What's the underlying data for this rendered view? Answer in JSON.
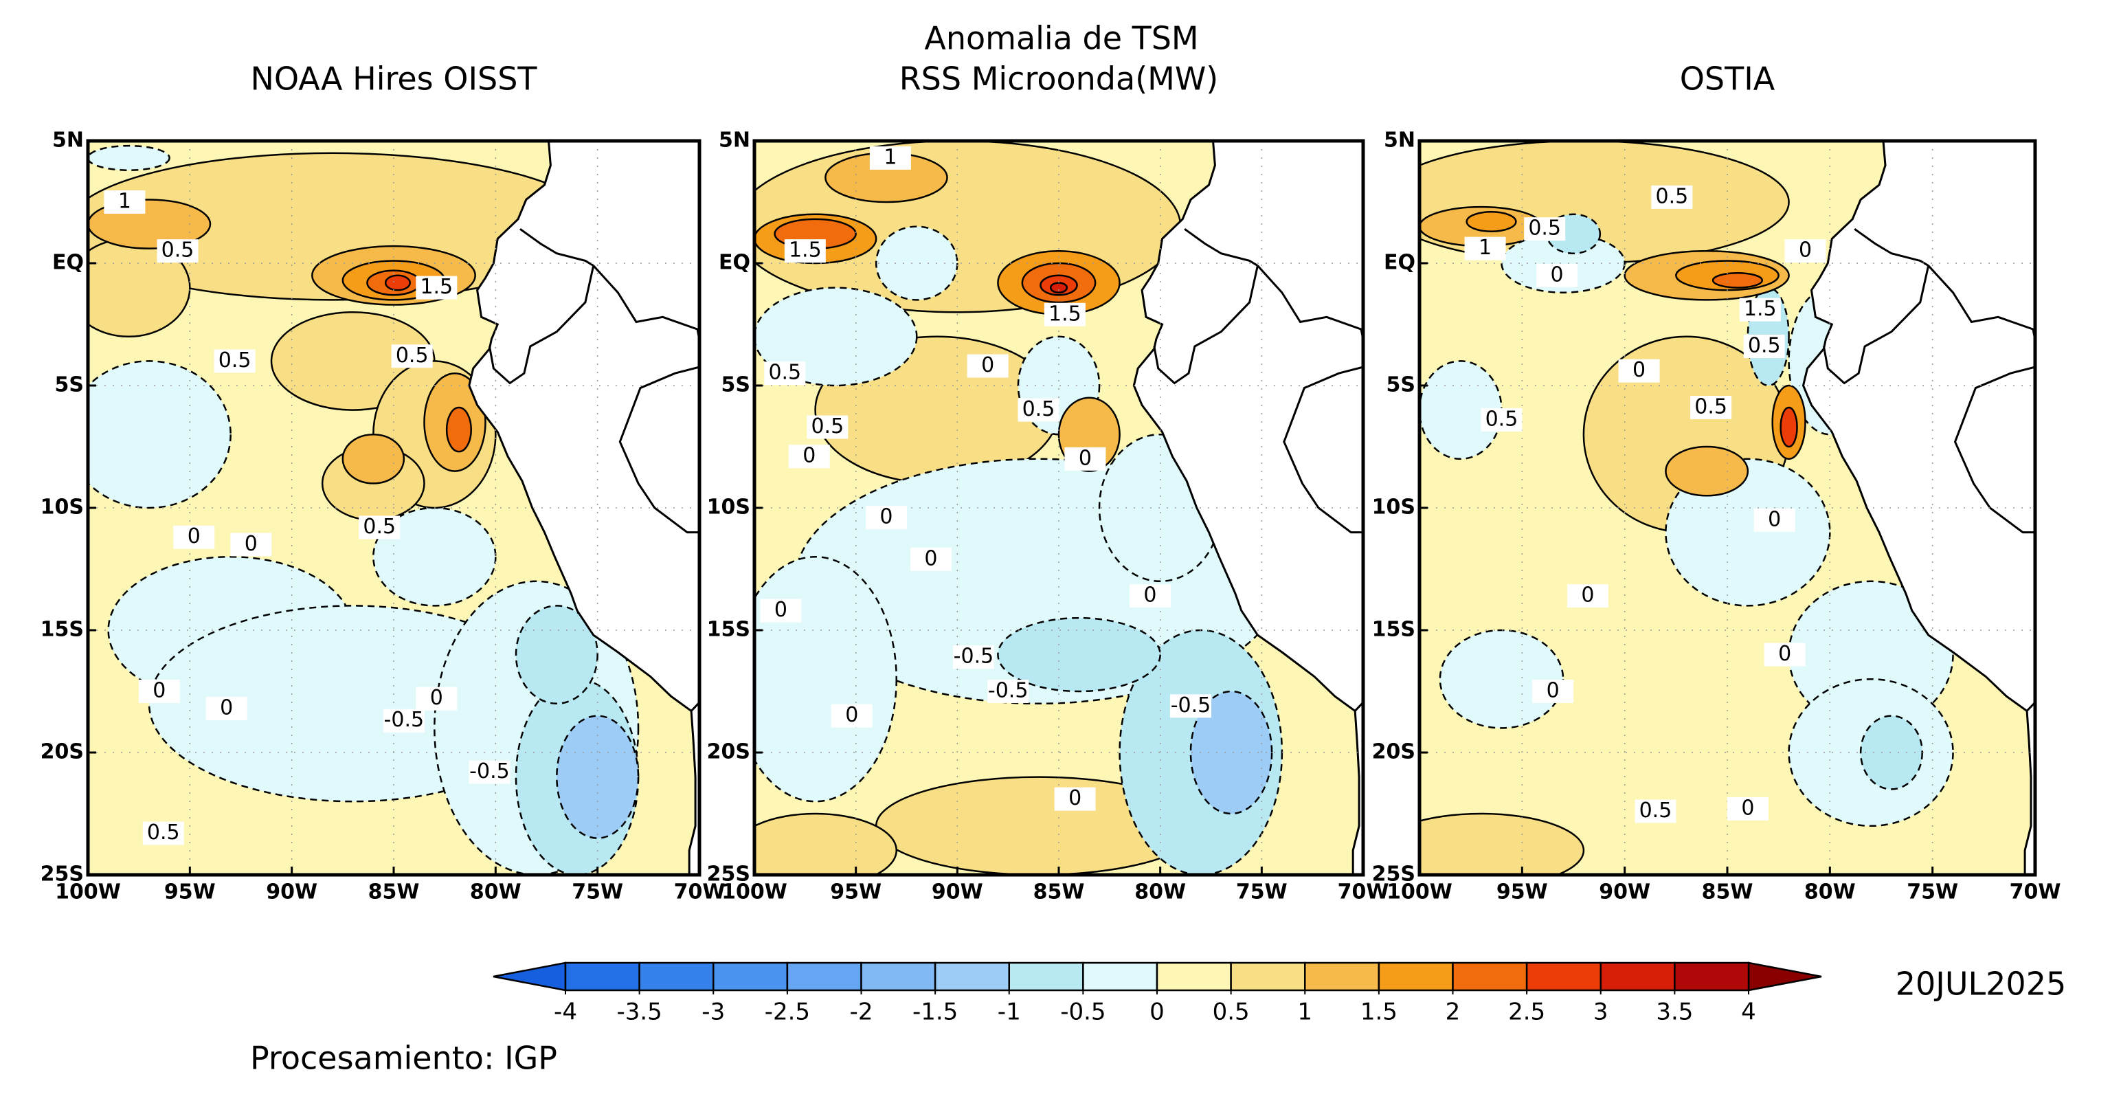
{
  "title": "Anomalia de TSM",
  "panels": [
    {
      "title": "NOAA Hires OISST",
      "contour_labels": [
        1,
        0.5,
        1.5,
        0.5,
        0.5,
        0.5,
        0,
        0,
        0,
        0,
        0,
        -0.5,
        -0.5,
        0.5
      ]
    },
    {
      "title": "RSS Microonda(MW)",
      "contour_labels": [
        1,
        1.5,
        1.5,
        0.5,
        0,
        0.5,
        0.5,
        0,
        0,
        0,
        0,
        0,
        0,
        -0.5,
        -0.5,
        -0.5,
        0,
        0
      ]
    },
    {
      "title": "OSTIA",
      "contour_labels": [
        0.5,
        0.5,
        1,
        0,
        0,
        1.5,
        0.5,
        0,
        0.5,
        0.5,
        0,
        0,
        0,
        0,
        0.5,
        0
      ]
    }
  ],
  "lat_ticks": [
    {
      "value": 5,
      "label": "5N"
    },
    {
      "value": 0,
      "label": "EQ"
    },
    {
      "value": -5,
      "label": "5S"
    },
    {
      "value": -10,
      "label": "10S"
    },
    {
      "value": -15,
      "label": "15S"
    },
    {
      "value": -20,
      "label": "20S"
    },
    {
      "value": -25,
      "label": "25S"
    }
  ],
  "lon_ticks": [
    {
      "value": -100,
      "label": "100W"
    },
    {
      "value": -95,
      "label": "95W"
    },
    {
      "value": -90,
      "label": "90W"
    },
    {
      "value": -85,
      "label": "85W"
    },
    {
      "value": -80,
      "label": "80W"
    },
    {
      "value": -75,
      "label": "75W"
    },
    {
      "value": -70,
      "label": "70W"
    }
  ],
  "colorbar": {
    "levels": [
      -4,
      -3.5,
      -3,
      -2.5,
      -2,
      -1.5,
      -1,
      -0.5,
      0,
      0.5,
      1,
      1.5,
      2,
      2.5,
      3,
      3.5,
      4
    ],
    "colors": [
      "#1660e0",
      "#2470e6",
      "#3582ec",
      "#4a94ef",
      "#64a6f2",
      "#80b9f4",
      "#9dcdf6",
      "#b8e9f2",
      "#e0f9fb",
      "#fdf6b4",
      "#f8de84",
      "#f6ba4a",
      "#f59c18",
      "#f06c0c",
      "#ec3c08",
      "#d61e08",
      "#b00808",
      "#8a0000"
    ]
  },
  "date": "20JUL2025",
  "footer": "Procesamiento: IGP"
}
